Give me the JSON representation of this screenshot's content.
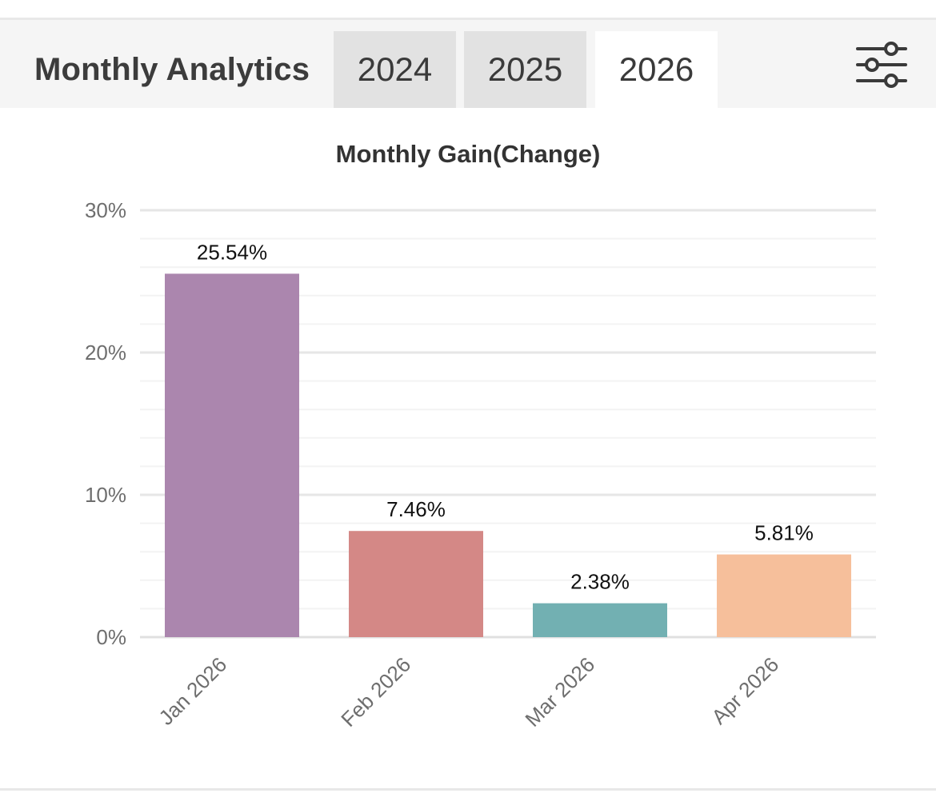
{
  "header": {
    "title": "Monthly Analytics",
    "tabs": [
      {
        "label": "2024",
        "active": false
      },
      {
        "label": "2025",
        "active": false
      },
      {
        "label": "2026",
        "active": true
      }
    ],
    "filter_icon": "sliders-icon"
  },
  "chart_data": {
    "type": "bar",
    "title": "Monthly Gain(Change)",
    "xlabel": "",
    "ylabel": "",
    "categories": [
      "Jan 2026",
      "Feb 2026",
      "Mar 2026",
      "Apr 2026"
    ],
    "values": [
      25.54,
      7.46,
      2.38,
      5.81
    ],
    "data_labels": [
      "25.54%",
      "7.46%",
      "2.38%",
      "5.81%"
    ],
    "colors": [
      "#ab86ae",
      "#d48886",
      "#72b0b2",
      "#f6bf9b"
    ],
    "ylim": [
      0,
      30
    ],
    "yticks": [
      0,
      10,
      20,
      30
    ],
    "ytick_labels": [
      "0%",
      "10%",
      "20%",
      "30%"
    ],
    "grid": true,
    "legend": "none"
  }
}
